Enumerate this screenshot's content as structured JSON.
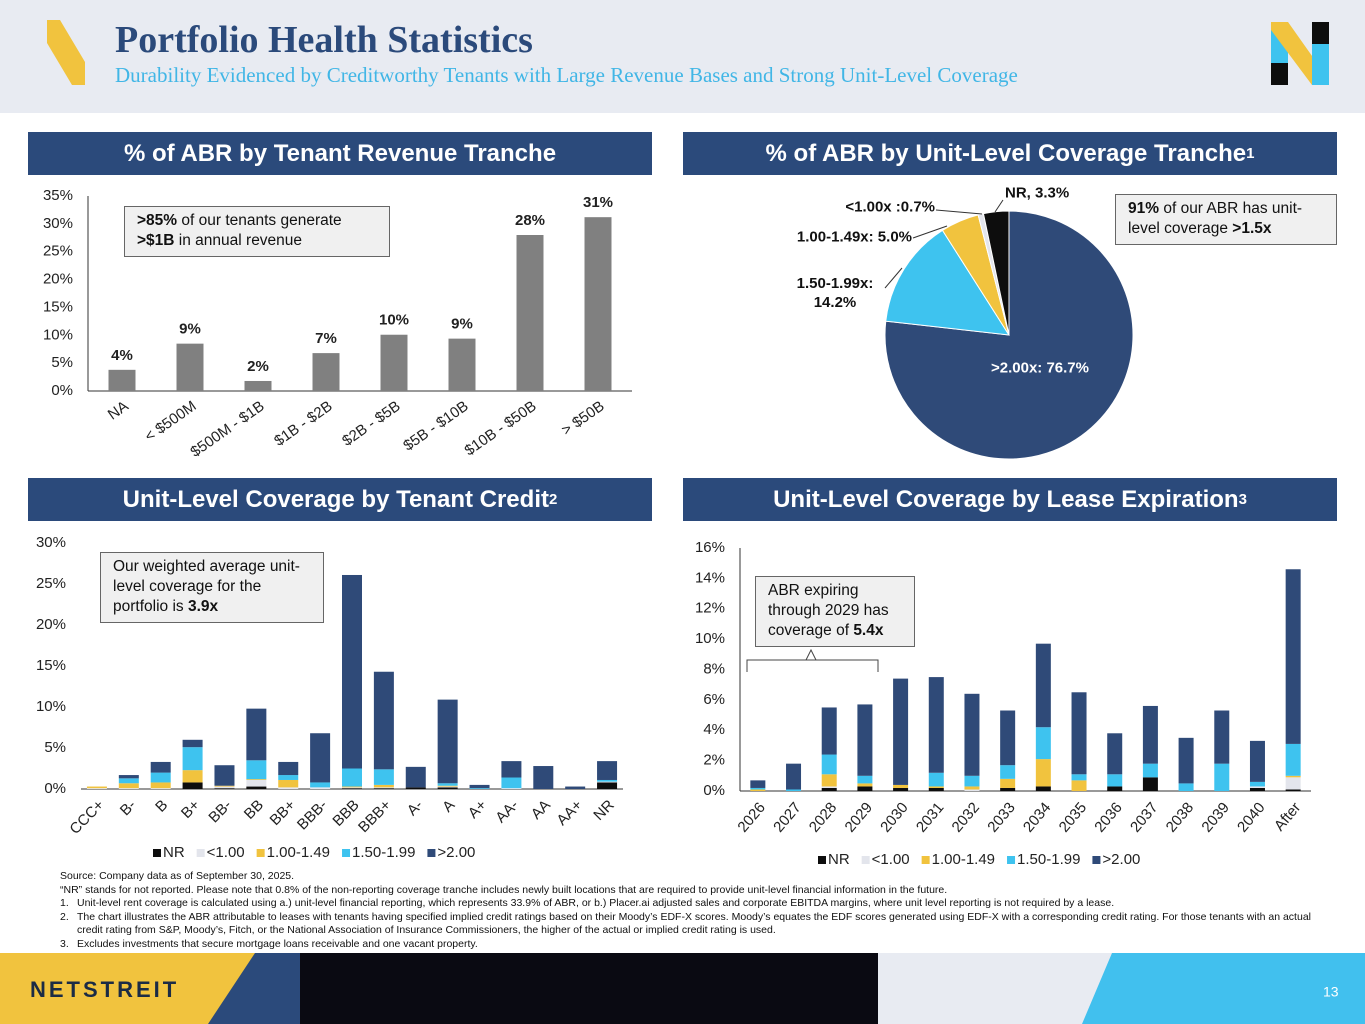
{
  "header": {
    "title": "Portfolio Health Statistics",
    "subtitle": "Durability Evidenced by Creditworthy Tenants with Large Revenue Bases and Strong Unit-Level Coverage"
  },
  "chart_data": [
    {
      "type": "bar",
      "title": "% of ABR by Tenant Revenue Tranche",
      "categories": [
        "NA",
        "< $500M",
        "$500M - $1B",
        "$1B - $2B",
        "$2B - $5B",
        "$5B - $10B",
        "$10B - $50B",
        "> $50B"
      ],
      "values": [
        3.8,
        8.5,
        1.8,
        6.8,
        10.1,
        9.4,
        28.0,
        31.2
      ],
      "value_labels": [
        "4%",
        "9%",
        "2%",
        "7%",
        "10%",
        "9%",
        "28%",
        "31%"
      ],
      "color": "#808080",
      "ylim": [
        0,
        35
      ],
      "yticks": [
        {
          "value": 0,
          "label": "0%"
        },
        {
          "value": 5,
          "label": "5%"
        },
        {
          "value": 10,
          "label": "10%"
        },
        {
          "value": 15,
          "label": "15%"
        },
        {
          "value": 20,
          "label": "20%"
        },
        {
          "value": 25,
          "label": "25%"
        },
        {
          "value": 30,
          "label": "30%"
        },
        {
          "value": 35,
          "label": "35%"
        }
      ],
      "annotation": [
        {
          "text": ">85%",
          "bold": true
        },
        {
          "text": " of our tenants generate "
        },
        {
          "text": ">$1B",
          "bold": true
        },
        {
          "text": " in annual revenue"
        }
      ]
    },
    {
      "type": "pie",
      "title": "% of ABR by Unit-Level Coverage Tranche",
      "title_note": "1",
      "values": [
        76.7,
        14.2,
        5.0,
        0.7,
        3.3
      ],
      "value_labels": [
        ">2.00x: 76.7%",
        "1.50-1.99x: 14.2%",
        "1.00-1.49x: 5.0%",
        "<1.00x :0.7%",
        "NR, 3.3%"
      ],
      "colors": [
        "#2f4a78",
        "#3ec3ef",
        "#f1c33e",
        "#e3e5ec",
        "#0d0d0d"
      ],
      "annotation": [
        {
          "text": "91%",
          "bold": true
        },
        {
          "text": " of our ABR has unit-level coverage "
        },
        {
          "text": ">1.5x",
          "bold": true
        }
      ]
    },
    {
      "type": "stacked_bar",
      "title": "Unit-Level Coverage by Tenant Credit",
      "title_note": "2",
      "categories": [
        "CCC+",
        "B-",
        "B",
        "B+",
        "BB-",
        "BB",
        "BB+",
        "BBB-",
        "BBB",
        "BBB+",
        "A-",
        "A",
        "A+",
        "AA-",
        "AA",
        "AA+",
        "NR"
      ],
      "series": [
        {
          "name": "NR",
          "color": "#0d0d0d",
          "values": [
            0,
            0,
            0,
            0.8,
            0.1,
            0.3,
            0,
            0,
            0.1,
            0.1,
            0.2,
            0.2,
            0,
            0,
            0,
            0,
            0.8
          ]
        },
        {
          "name": "<1.00",
          "color": "#e3e5ec",
          "values": [
            0.1,
            0.1,
            0.1,
            0,
            0.2,
            0.8,
            0.2,
            0.2,
            0.1,
            0.1,
            0,
            0.1,
            0,
            0.1,
            0,
            0,
            0.1
          ]
        },
        {
          "name": "1.00-1.49",
          "color": "#f1c33e",
          "values": [
            0.2,
            0.6,
            0.7,
            1.5,
            0.1,
            0.1,
            0.9,
            0,
            0.1,
            0.3,
            0,
            0.1,
            0,
            0,
            0,
            0,
            0
          ]
        },
        {
          "name": "1.50-1.99",
          "color": "#3ec3ef",
          "values": [
            0,
            0.6,
            1.2,
            2.8,
            0,
            2.3,
            0.6,
            0.6,
            2.2,
            1.9,
            0,
            0.3,
            0.1,
            1.3,
            0,
            0,
            0.2
          ]
        },
        {
          "name": ">2.00",
          "color": "#2f4a78",
          "values": [
            0,
            0.4,
            1.3,
            0.9,
            2.5,
            6.3,
            1.6,
            6.0,
            23.6,
            11.9,
            2.5,
            10.2,
            0.4,
            2.0,
            2.8,
            0.3,
            2.3
          ]
        }
      ],
      "ylim": [
        0,
        30
      ],
      "yticks": [
        {
          "value": 0,
          "label": "0%"
        },
        {
          "value": 5,
          "label": "5%"
        },
        {
          "value": 10,
          "label": "10%"
        },
        {
          "value": 15,
          "label": "15%"
        },
        {
          "value": 20,
          "label": "20%"
        },
        {
          "value": 25,
          "label": "25%"
        },
        {
          "value": 30,
          "label": "30%"
        }
      ],
      "annotation": [
        {
          "text": "Our weighted average unit-level coverage for the portfolio is "
        },
        {
          "text": "3.9x",
          "bold": true
        }
      ]
    },
    {
      "type": "stacked_bar",
      "title": "Unit-Level Coverage by Lease Expiration",
      "title_note": "3",
      "categories": [
        "2026",
        "2027",
        "2028",
        "2029",
        "2030",
        "2031",
        "2032",
        "2033",
        "2034",
        "2035",
        "2036",
        "2037",
        "2038",
        "2039",
        "2040",
        "After"
      ],
      "series": [
        {
          "name": "NR",
          "color": "#0d0d0d",
          "values": [
            0,
            0,
            0.2,
            0.3,
            0.2,
            0.2,
            0,
            0.2,
            0.3,
            0,
            0.3,
            0.9,
            0,
            0,
            0.2,
            0.1
          ]
        },
        {
          "name": "<1.00",
          "color": "#e3e5ec",
          "values": [
            0,
            0,
            0.1,
            0,
            0,
            0,
            0.1,
            0,
            0,
            0,
            0,
            0,
            0,
            0,
            0.1,
            0.8
          ]
        },
        {
          "name": "1.00-1.49",
          "color": "#f1c33e",
          "values": [
            0.1,
            0,
            0.8,
            0.2,
            0.2,
            0.1,
            0.2,
            0.6,
            1.8,
            0.7,
            0,
            0,
            0,
            0,
            0,
            0.1
          ]
        },
        {
          "name": "1.50-1.99",
          "color": "#3ec3ef",
          "values": [
            0.1,
            0.1,
            1.3,
            0.5,
            0,
            0.9,
            0.7,
            0.9,
            2.1,
            0.4,
            0.8,
            0.9,
            0.5,
            1.8,
            0.3,
            2.1
          ]
        },
        {
          "name": ">2.00",
          "color": "#2f4a78",
          "values": [
            0.5,
            1.7,
            3.1,
            4.7,
            7.0,
            6.3,
            5.4,
            3.6,
            5.5,
            5.4,
            2.7,
            3.8,
            3.0,
            3.5,
            2.7,
            11.5
          ]
        }
      ],
      "ylim": [
        0,
        16
      ],
      "yticks": [
        {
          "value": 0,
          "label": "0%"
        },
        {
          "value": 2,
          "label": "2%"
        },
        {
          "value": 4,
          "label": "4%"
        },
        {
          "value": 6,
          "label": "6%"
        },
        {
          "value": 8,
          "label": "8%"
        },
        {
          "value": 10,
          "label": "10%"
        },
        {
          "value": 12,
          "label": "12%"
        },
        {
          "value": 14,
          "label": "14%"
        },
        {
          "value": 16,
          "label": "16%"
        }
      ],
      "annotation": [
        {
          "text": "ABR expiring through 2029 has coverage of "
        },
        {
          "text": "5.4x",
          "bold": true
        }
      ]
    }
  ],
  "footnotes": {
    "source": "Source: Company data as of September 30, 2025.",
    "nr_note": "“NR” stands for not reported. Please note that 0.8% of the non-reporting coverage tranche includes newly built locations that are required to provide unit-level financial information in the future.",
    "notes": [
      {
        "num": "1.",
        "text": "Unit-level rent coverage is calculated using a.) unit-level financial reporting, which represents 33.9% of ABR, or b.) Placer.ai adjusted sales and corporate EBITDA margins, where unit level reporting is not required by a lease."
      },
      {
        "num": "2.",
        "text": "The chart illustrates the ABR attributable to leases with tenants having specified implied credit ratings based on their Moody’s EDF-X scores. Moody’s equates the EDF scores generated using EDF-X with a corresponding credit rating. For those tenants with an actual credit rating from S&P, Moody’s, Fitch, or the National Association of Insurance Commissioners, the higher of the actual or implied credit rating is used."
      },
      {
        "num": "3.",
        "text": "Excludes investments that secure mortgage loans receivable and one vacant property."
      }
    ]
  },
  "footer": {
    "brand": "NETSTREIT",
    "page": "13"
  }
}
